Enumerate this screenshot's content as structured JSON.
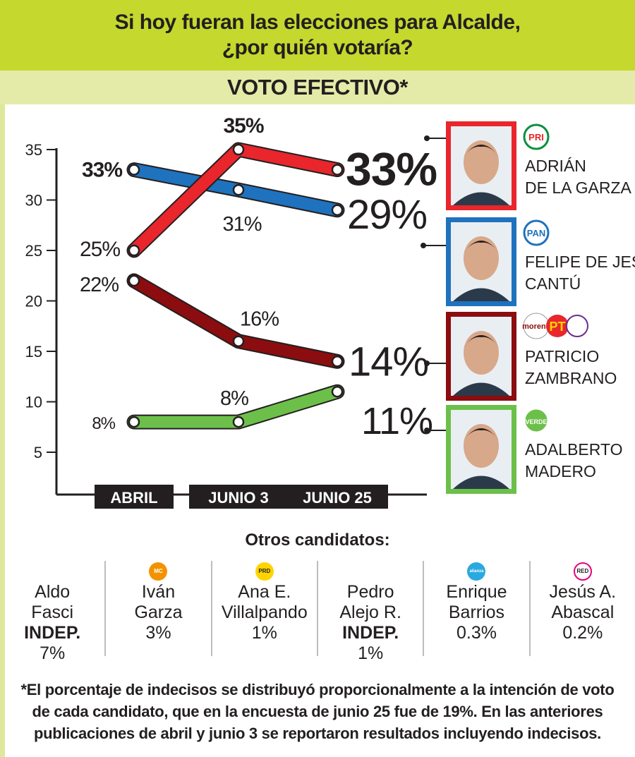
{
  "header": {
    "title_line1": "Si hoy fueran las elecciones para Alcalde,",
    "title_line2": "¿por quién votaría?",
    "subtitle": "VOTO EFECTIVO*"
  },
  "chart_data": {
    "type": "line",
    "categories": [
      "ABRIL",
      "JUNIO 3",
      "JUNIO 25"
    ],
    "ylim": [
      3,
      38
    ],
    "yticks": [
      "35",
      "30",
      "25",
      "20",
      "15",
      "10",
      "5"
    ],
    "grid": false,
    "series": [
      {
        "name": "ADRIÁN DE LA GARZA",
        "party": "PRI",
        "color": "#e8262c",
        "values": [
          25,
          35,
          33
        ],
        "labels": [
          "25%",
          "35%",
          "33%"
        ]
      },
      {
        "name": "FELIPE DE JESÚS CANTÚ",
        "party": "PAN",
        "color": "#1f72bd",
        "values": [
          33,
          31,
          29
        ],
        "labels": [
          "33%",
          "31%",
          "29%"
        ]
      },
      {
        "name": "PATRICIO ZAMBRANO",
        "party": "morena PT encuentro social",
        "color": "#8b0d0f",
        "values": [
          22,
          16,
          14
        ],
        "labels": [
          "22%",
          "16%",
          "14%"
        ]
      },
      {
        "name": "ADALBERTO MADERO",
        "party": "VERDE",
        "color": "#6cc04a",
        "values": [
          8,
          8,
          11
        ],
        "labels": [
          "8%",
          "8%",
          "11%"
        ]
      }
    ],
    "candidates": [
      {
        "line1": "ADRIÁN",
        "line2": "DE LA GARZA",
        "logo": "PRI",
        "frame": "#e8262c"
      },
      {
        "line1": "FELIPE DE JESÚS",
        "line2": "CANTÚ",
        "logo": "PAN",
        "frame": "#1f72bd"
      },
      {
        "line1": "PATRICIO",
        "line2": "ZAMBRANO",
        "logo": "morena PT",
        "frame": "#8b0d0f"
      },
      {
        "line1": "ADALBERTO",
        "line2": "MADERO",
        "logo": "VERDE",
        "frame": "#6cc04a"
      }
    ]
  },
  "others": {
    "title": "Otros candidatos:",
    "items": [
      {
        "line1": "Aldo",
        "line2": "Fasci",
        "line3": "INDEP.",
        "line3_bold": true,
        "pct": "7%",
        "logo": "",
        "logo_color": ""
      },
      {
        "line1": "",
        "line2": "Iván",
        "line3": "Garza",
        "line3_bold": false,
        "pct": "3%",
        "logo": "MC",
        "logo_color": "#f39200"
      },
      {
        "line1": "",
        "line2": "Ana E.",
        "line3": "Villalpando",
        "line3_bold": false,
        "pct": "1%",
        "logo": "PRD",
        "logo_color": "#ffd400"
      },
      {
        "line1": "Pedro",
        "line2": "Alejo R.",
        "line3": "INDEP.",
        "line3_bold": true,
        "pct": "1%",
        "logo": "",
        "logo_color": ""
      },
      {
        "line1": "",
        "line2": "Enrique",
        "line3": "Barrios",
        "line3_bold": false,
        "pct": "0.3%",
        "logo": "alianza",
        "logo_color": "#29a9e0"
      },
      {
        "line1": "",
        "line2": "Jesús A.",
        "line3": "Abascal",
        "line3_bold": false,
        "pct": "0.2%",
        "logo": "RED",
        "logo_color": "#e6007e"
      }
    ]
  },
  "footnote": {
    "line1": "*El porcentaje de indecisos se distribuyó proporcionalmente a la intención de voto",
    "line2": "de cada candidato, que en la encuesta de junio 25 fue de 19%.  En las anteriores",
    "line3": "publicaciones de abril y junio 3 se reportaron resultados incluyendo indecisos."
  }
}
